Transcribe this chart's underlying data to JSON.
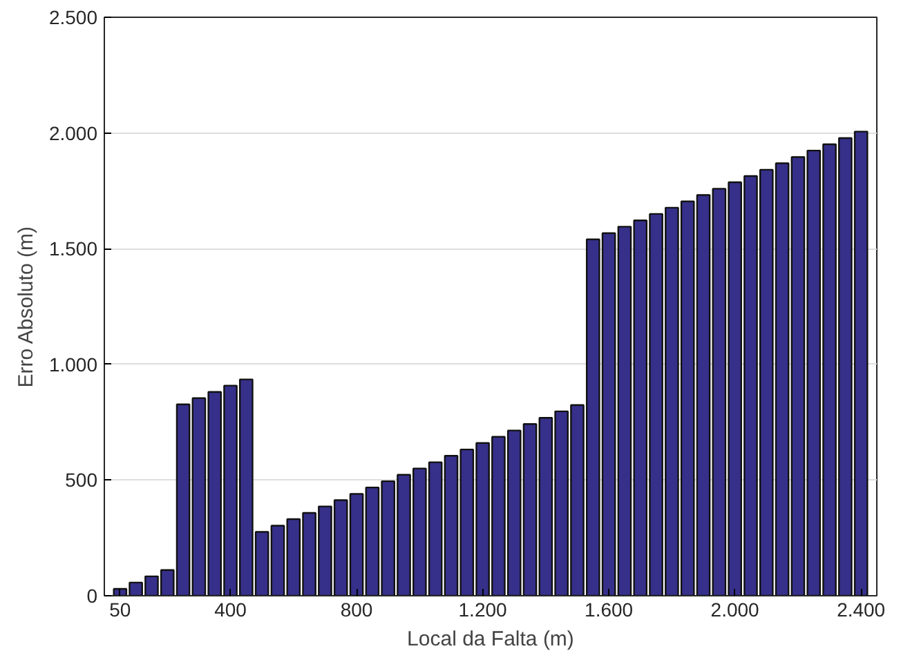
{
  "chart_data": {
    "type": "bar",
    "xlabel": "Local da Falta (m)",
    "ylabel": "Erro Absoluto (m)",
    "x": [
      50,
      100,
      150,
      200,
      250,
      300,
      350,
      400,
      450,
      500,
      550,
      600,
      650,
      700,
      750,
      800,
      850,
      900,
      950,
      1000,
      1050,
      1100,
      1150,
      1200,
      1250,
      1300,
      1350,
      1400,
      1450,
      1500,
      1550,
      1600,
      1650,
      1700,
      1750,
      1800,
      1850,
      1900,
      1950,
      2000,
      2050,
      2100,
      2150,
      2200,
      2250,
      2300,
      2350,
      2400
    ],
    "values": [
      30,
      57,
      84,
      111,
      827,
      854,
      881,
      908,
      935,
      276,
      303,
      331,
      358,
      386,
      413,
      440,
      468,
      495,
      523,
      550,
      577,
      605,
      632,
      660,
      687,
      714,
      742,
      769,
      797,
      824,
      1540,
      1567,
      1595,
      1622,
      1650,
      1677,
      1704,
      1732,
      1759,
      1787,
      1814,
      1841,
      1869,
      1896,
      1924,
      1951,
      1978,
      2006
    ],
    "color": "#36308a",
    "xlim": [
      0,
      2450
    ],
    "xticks": [
      50,
      400,
      800,
      {
        "value": 1200,
        "label": "1.200"
      },
      {
        "value": 1600,
        "label": "1.600"
      },
      {
        "value": 2000,
        "label": "2.000"
      },
      {
        "value": 2400,
        "label": "2.400"
      }
    ],
    "ylim": [
      0,
      2500
    ],
    "yticks": [
      0,
      500,
      {
        "value": 1000,
        "label": "1.000"
      },
      {
        "value": 1500,
        "label": "1.500"
      },
      {
        "value": 2000,
        "label": "2.000"
      },
      {
        "value": 2500,
        "label": "2.500"
      }
    ],
    "grid": "y"
  }
}
